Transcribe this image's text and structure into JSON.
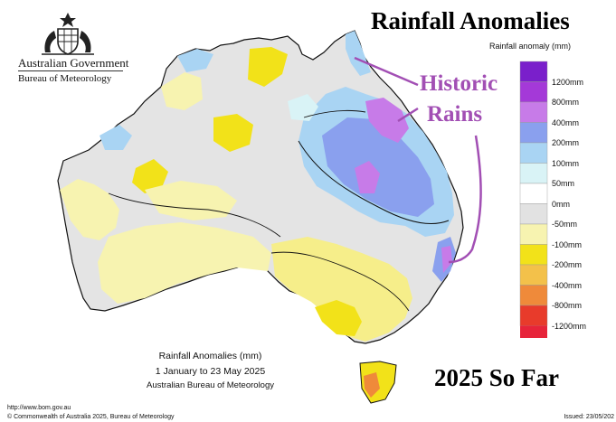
{
  "branding": {
    "government": "Australian Government",
    "agency": "Bureau of Meteorology",
    "logo_icon": "coat-of-arms-icon"
  },
  "headline": "Rainfall Anomalies",
  "annotation": {
    "line1": "Historic",
    "line2": "Rains",
    "color": "#a24fb4"
  },
  "period_banner": "2025 So Far",
  "legend": {
    "title": "Rainfall anomaly (mm)",
    "items": [
      {
        "label": "1200mm",
        "color": "#7a1fcb"
      },
      {
        "label": "800mm",
        "color": "#a439d8"
      },
      {
        "label": "400mm",
        "color": "#c77be8"
      },
      {
        "label": "200mm",
        "color": "#8aa0ee"
      },
      {
        "label": "100mm",
        "color": "#a9d4f3"
      },
      {
        "label": "50mm",
        "color": "#d9f3f6"
      },
      {
        "label": "0mm",
        "color": "#ffffff"
      },
      {
        "label": "-50mm",
        "color": "#e2e2e2"
      },
      {
        "label": "-100mm",
        "color": "#f7f3b0"
      },
      {
        "label": "-200mm",
        "color": "#f2e219"
      },
      {
        "label": "-400mm",
        "color": "#f3c14a"
      },
      {
        "label": "-800mm",
        "color": "#ef8a3a"
      },
      {
        "label": "-1200mm",
        "color": "#e83b2b"
      }
    ],
    "low_color": "#e7243a"
  },
  "caption": {
    "title": "Rainfall Anomalies (mm)",
    "period": "1 January to 23 May 2025",
    "source": "Australian Bureau of Meteorology"
  },
  "footer": {
    "url": "http://www.bom.gov.au",
    "copyright": "© Commonwealth of Australia 2025, Bureau of Meteorology",
    "issued": "Issued: 23/05/202"
  }
}
